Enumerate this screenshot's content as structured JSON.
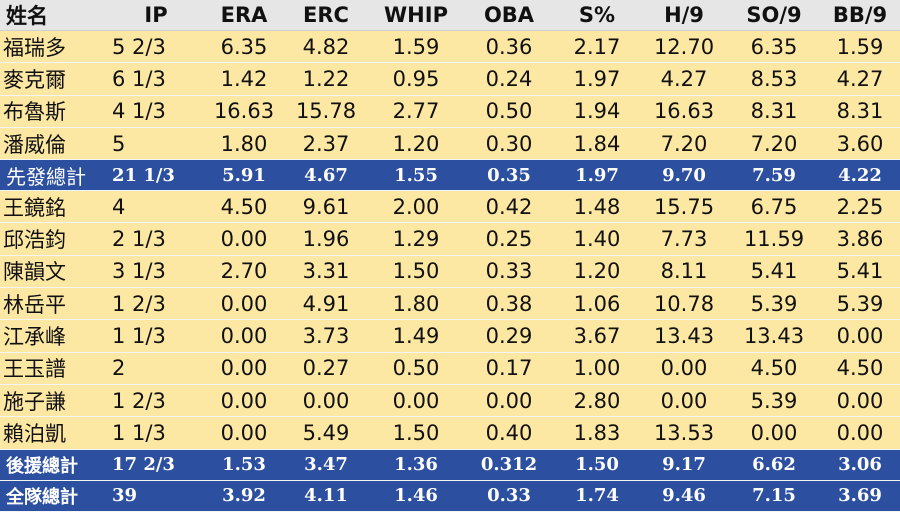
{
  "headers": [
    "姓名",
    "IP",
    "ERA",
    "ERC",
    "WHIP",
    "OBA",
    "S%",
    "H/9",
    "SO/9",
    "BB/9"
  ],
  "starters": [
    [
      "福瑞多",
      "5 2/3",
      "6.35",
      "4.82",
      "1.59",
      "0.36",
      "2.17",
      "12.70",
      "6.35",
      "1.59"
    ],
    [
      "麥克爾",
      "6 1/3",
      "1.42",
      "1.22",
      "0.95",
      "0.24",
      "1.97",
      "4.27",
      "8.53",
      "4.27"
    ],
    [
      "布魯斯",
      "4 1/3",
      "16.63",
      "15.78",
      "2.77",
      "0.50",
      "1.94",
      "16.63",
      "8.31",
      "8.31"
    ],
    [
      "潘威倫",
      "5",
      "1.80",
      "2.37",
      "1.20",
      "0.30",
      "1.84",
      "7.20",
      "7.20",
      "3.60"
    ]
  ],
  "starter_total": [
    "先發總計",
    "21 1/3",
    "5.91",
    "4.67",
    "1.55",
    "0.35",
    "1.97",
    "9.70",
    "7.59",
    "4.22"
  ],
  "relievers": [
    [
      "王鏡銘",
      "4",
      "4.50",
      "9.61",
      "2.00",
      "0.42",
      "1.48",
      "15.75",
      "6.75",
      "2.25"
    ],
    [
      "邱浩鈞",
      "2 1/3",
      "0.00",
      "1.96",
      "1.29",
      "0.25",
      "1.40",
      "7.73",
      "11.59",
      "3.86"
    ],
    [
      "陳韻文",
      "3 1/3",
      "2.70",
      "3.31",
      "1.50",
      "0.33",
      "1.20",
      "8.11",
      "5.41",
      "5.41"
    ],
    [
      "林岳平",
      "1 2/3",
      "0.00",
      "4.91",
      "1.80",
      "0.38",
      "1.06",
      "10.78",
      "5.39",
      "5.39"
    ],
    [
      "江承峰",
      "1 1/3",
      "0.00",
      "3.73",
      "1.49",
      "0.29",
      "3.67",
      "13.43",
      "13.43",
      "0.00"
    ],
    [
      "王玉譜",
      "2",
      "0.00",
      "0.27",
      "0.50",
      "0.17",
      "1.00",
      "0.00",
      "4.50",
      "4.50"
    ],
    [
      "施子謙",
      "1 2/3",
      "0.00",
      "0.00",
      "0.00",
      "0.00",
      "2.80",
      "0.00",
      "5.39",
      "0.00"
    ],
    [
      "賴泊凱",
      "1 1/3",
      "0.00",
      "5.49",
      "1.50",
      "0.40",
      "1.83",
      "13.53",
      "0.00",
      "0.00"
    ]
  ],
  "reliever_total": [
    "後援總計",
    "17 2/3",
    "1.53",
    "3.47",
    "1.36",
    "0.312",
    "1.50",
    "9.17",
    "6.62",
    "3.06"
  ],
  "team_total": [
    "全隊總計",
    "39",
    "3.92",
    "4.11",
    "1.46",
    "0.33",
    "1.74",
    "9.46",
    "7.15",
    "3.69"
  ],
  "colors": {
    "header_bg": "#e6e6e6",
    "row_bg": "#fde8a3",
    "total_bg": "#2c4fa0",
    "total_text": "#ffffff"
  }
}
